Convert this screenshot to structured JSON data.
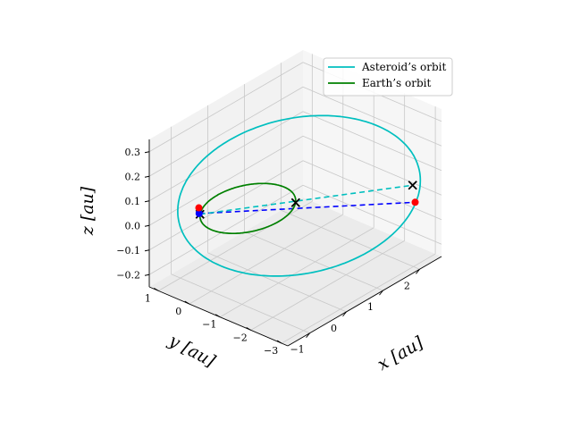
{
  "chart_data": {
    "type": "3d-line",
    "title": "",
    "xlabel": "x [au]",
    "ylabel": "y [au]",
    "zlabel": "z [au]",
    "x_ticks": [
      "−1",
      "0",
      "1",
      "2"
    ],
    "y_ticks": [
      "1",
      "0",
      "−1",
      "−2",
      "−3"
    ],
    "z_ticks": [
      "0.3",
      "0.2",
      "0.1",
      "0.0",
      "−0.1",
      "−0.2"
    ],
    "xlim": [
      -1.6,
      2.6
    ],
    "ylim": [
      -3.2,
      1.3
    ],
    "zlim": [
      -0.25,
      0.35
    ],
    "grid": true,
    "legend_position": "top-right",
    "series": [
      {
        "name": "Asteroid’s orbit",
        "color": "#00bfbf",
        "kind": "ellipse",
        "center": [
          0.6,
          -0.95,
          0.05
        ],
        "u": [
          1.8,
          -1.8,
          0.0
        ],
        "v": [
          0.15,
          0.15,
          0.3
        ]
      },
      {
        "name": "Earth’s orbit",
        "color": "#008000",
        "kind": "circle",
        "center": [
          0.0,
          0.0,
          0.0
        ],
        "radius": 1.0
      }
    ],
    "markers": [
      {
        "label": "x",
        "color": "#000000",
        "points": [
          [
            -0.71,
            0.71,
            0.0
          ],
          [
            0.71,
            -0.71,
            0.0
          ],
          [
            2.4,
            -2.5,
            0.02
          ]
        ]
      },
      {
        "label": "o",
        "color": "#0000ff",
        "points": [
          [
            -0.7,
            0.75,
            0.0
          ]
        ]
      },
      {
        "label": "o",
        "color": "#ff0000",
        "points": [
          [
            -0.75,
            0.7,
            0.03
          ],
          [
            2.3,
            -2.7,
            -0.03
          ]
        ]
      }
    ],
    "connectors": [
      {
        "color": "#0000ff",
        "style": "dashed",
        "from": [
          -0.7,
          0.75,
          0.0
        ],
        "to": [
          2.3,
          -2.7,
          -0.03
        ]
      },
      {
        "color": "#00bfbf",
        "style": "dashed",
        "from": [
          -0.71,
          0.71,
          0.0
        ],
        "to": [
          2.4,
          -2.5,
          0.02
        ]
      }
    ]
  }
}
